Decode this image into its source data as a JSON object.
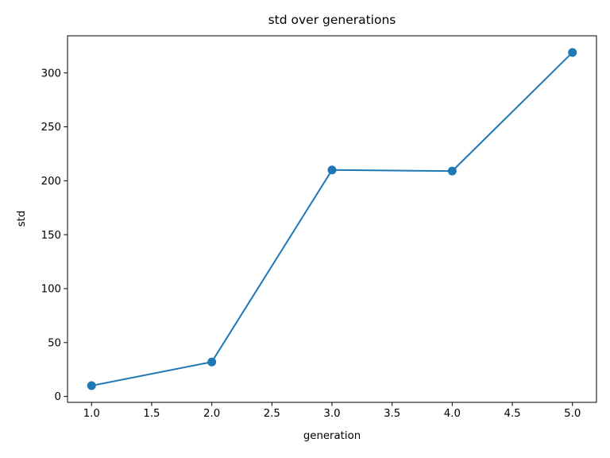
{
  "chart_data": {
    "type": "line",
    "title": "std over generations",
    "xlabel": "generation",
    "ylabel": "std",
    "x": [
      1,
      2,
      3,
      4,
      5
    ],
    "series": [
      {
        "name": "std",
        "values": [
          10,
          32,
          210,
          209,
          319
        ],
        "color": "#1f77b4",
        "marker": "circle",
        "linewidth": 2,
        "markersize": 11
      }
    ],
    "xlim": [
      0.8,
      5.2
    ],
    "ylim": [
      -5.45,
      334.45
    ],
    "xticks": {
      "values": [
        1.0,
        1.5,
        2.0,
        2.5,
        3.0,
        3.5,
        4.0,
        4.5,
        5.0
      ],
      "labels": [
        "1.0",
        "1.5",
        "2.0",
        "2.5",
        "3.0",
        "3.5",
        "4.0",
        "4.5",
        "5.0"
      ]
    },
    "yticks": {
      "values": [
        0,
        50,
        100,
        150,
        200,
        250,
        300
      ],
      "labels": [
        "0",
        "50",
        "100",
        "150",
        "200",
        "250",
        "300"
      ]
    },
    "grid": false,
    "legend": "none",
    "axis_color": "#000000",
    "text_color": "#000000",
    "background": "#ffffff"
  }
}
